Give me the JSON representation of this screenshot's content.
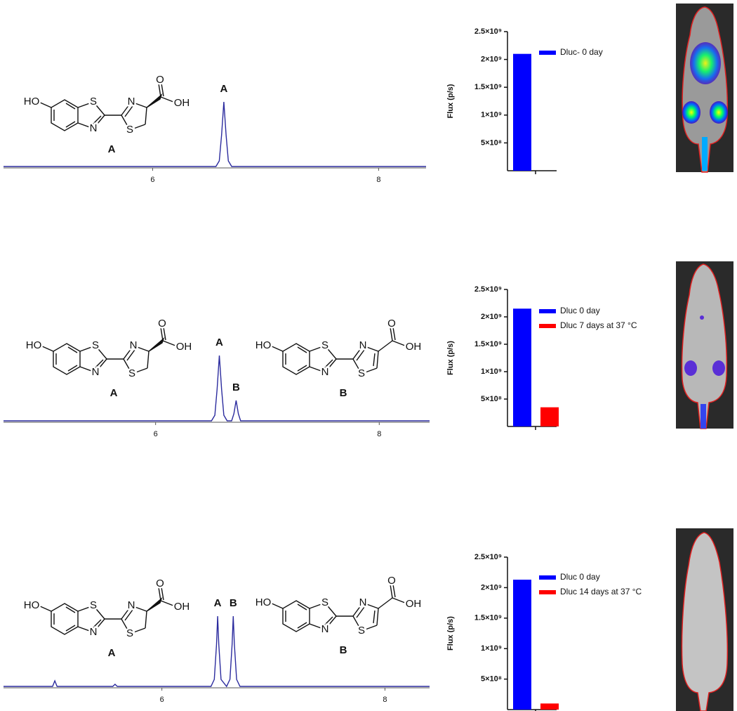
{
  "chart_data": [
    {
      "type": "line",
      "x": [
        4.68,
        6.56,
        6.59,
        6.61,
        6.63,
        6.65,
        6.67,
        6.7,
        8.42
      ],
      "values": [
        0,
        0,
        8,
        45,
        92,
        45,
        8,
        0,
        0
      ],
      "color": "#2b2b9e",
      "xlim": [
        4.68,
        8.42
      ],
      "ylim": [
        0,
        100
      ],
      "xticks": [
        6,
        8
      ],
      "annotations": [
        {
          "text": "A",
          "x": 6.63,
          "y": 92
        }
      ]
    },
    {
      "type": "bar",
      "categories": [
        null
      ],
      "series": [
        {
          "name": "Dluc- 0 day",
          "color": "#0000ff",
          "values": [
            2100000000
          ]
        }
      ],
      "ylim": [
        0,
        2500000000
      ],
      "yticks": [
        {
          "value": 500000000,
          "label": "5×10⁸"
        },
        {
          "value": 1000000000,
          "label": "1×10⁹"
        },
        {
          "value": 1500000000,
          "label": "1.5×10⁹"
        },
        {
          "value": 2000000000,
          "label": "2×10⁹"
        },
        {
          "value": 2500000000,
          "label": "2.5×10⁹"
        }
      ],
      "ylabel": "Flux (p/s)"
    },
    {
      "type": "line",
      "x": [
        4.64,
        6.5,
        6.53,
        6.55,
        6.57,
        6.59,
        6.61,
        6.64,
        6.68,
        6.7,
        6.72,
        6.74,
        6.76,
        8.45
      ],
      "values": [
        0,
        0,
        8,
        45,
        93,
        45,
        8,
        0,
        0,
        10,
        29,
        10,
        0,
        0
      ],
      "color": "#2b2b9e",
      "xlim": [
        4.64,
        8.45
      ],
      "ylim": [
        0,
        100
      ],
      "xticks": [
        6,
        8
      ],
      "annotations": [
        {
          "text": "A",
          "x": 6.57,
          "y": 93
        },
        {
          "text": "B",
          "x": 6.72,
          "y": 29
        }
      ]
    },
    {
      "type": "bar",
      "categories": [
        null
      ],
      "series": [
        {
          "name": "Dluc 0 day",
          "color": "#0000ff",
          "values": [
            2150000000
          ]
        },
        {
          "name": "Dluc 7 days at 37 °C",
          "color": "#ff0000",
          "values": [
            350000000
          ]
        }
      ],
      "ylim": [
        0,
        2500000000
      ],
      "yticks": [
        {
          "value": 500000000,
          "label": "5×10⁸"
        },
        {
          "value": 1000000000,
          "label": "1×10⁹"
        },
        {
          "value": 1500000000,
          "label": "1.5×10⁹"
        },
        {
          "value": 2000000000,
          "label": "2×10⁹"
        },
        {
          "value": 2500000000,
          "label": "2.5×10⁹"
        }
      ],
      "ylabel": "Flux (p/s)"
    },
    {
      "type": "line",
      "x": [
        4.58,
        5.02,
        5.04,
        5.06,
        5.56,
        5.58,
        5.6,
        6.44,
        6.47,
        6.49,
        6.5,
        6.51,
        6.53,
        6.58,
        6.61,
        6.63,
        6.64,
        6.65,
        6.67,
        6.7,
        8.4
      ],
      "values": [
        0,
        0,
        8,
        0,
        0,
        3,
        0,
        0,
        10,
        60,
        100,
        60,
        10,
        0,
        10,
        60,
        100,
        60,
        10,
        0,
        0
      ],
      "color": "#2b2b9e",
      "xlim": [
        4.58,
        8.4
      ],
      "ylim": [
        0,
        100
      ],
      "xticks": [
        6,
        8
      ],
      "annotations": [
        {
          "text": "A",
          "x": 6.5,
          "y": 100
        },
        {
          "text": "B",
          "x": 6.64,
          "y": 100
        }
      ]
    },
    {
      "type": "bar",
      "categories": [
        null
      ],
      "series": [
        {
          "name": "Dluc 0 day",
          "color": "#0000ff",
          "values": [
            2130000000
          ]
        },
        {
          "name": "Dluc 14 days at 37 °C",
          "color": "#ff0000",
          "values": [
            100000000
          ]
        }
      ],
      "ylim": [
        0,
        2500000000
      ],
      "yticks": [
        {
          "value": 500000000,
          "label": "5×10⁸"
        },
        {
          "value": 1000000000,
          "label": "1×10⁹"
        },
        {
          "value": 1500000000,
          "label": "1.5×10⁹"
        },
        {
          "value": 2000000000,
          "label": "2×10⁹"
        },
        {
          "value": 2500000000,
          "label": "2.5×10⁹"
        }
      ],
      "ylabel": "Flux (p/s)"
    }
  ],
  "structures": [
    {
      "atoms": [
        "HO",
        "S",
        "N",
        "N",
        "S",
        "O",
        "OH"
      ],
      "caption": "A"
    },
    {
      "atoms": [
        "HO",
        "S",
        "N",
        "N",
        "S",
        "O",
        "OH"
      ],
      "caption": "A"
    },
    {
      "atoms": [
        "HO",
        "S",
        "N",
        "N",
        "S",
        "O",
        "OH"
      ],
      "caption": "B"
    },
    {
      "atoms": [
        "HO",
        "S",
        "N",
        "N",
        "S",
        "O",
        "OH"
      ],
      "caption": "A"
    },
    {
      "atoms": [
        "HO",
        "S",
        "N",
        "N",
        "S",
        "O",
        "OH"
      ],
      "caption": "B"
    }
  ]
}
